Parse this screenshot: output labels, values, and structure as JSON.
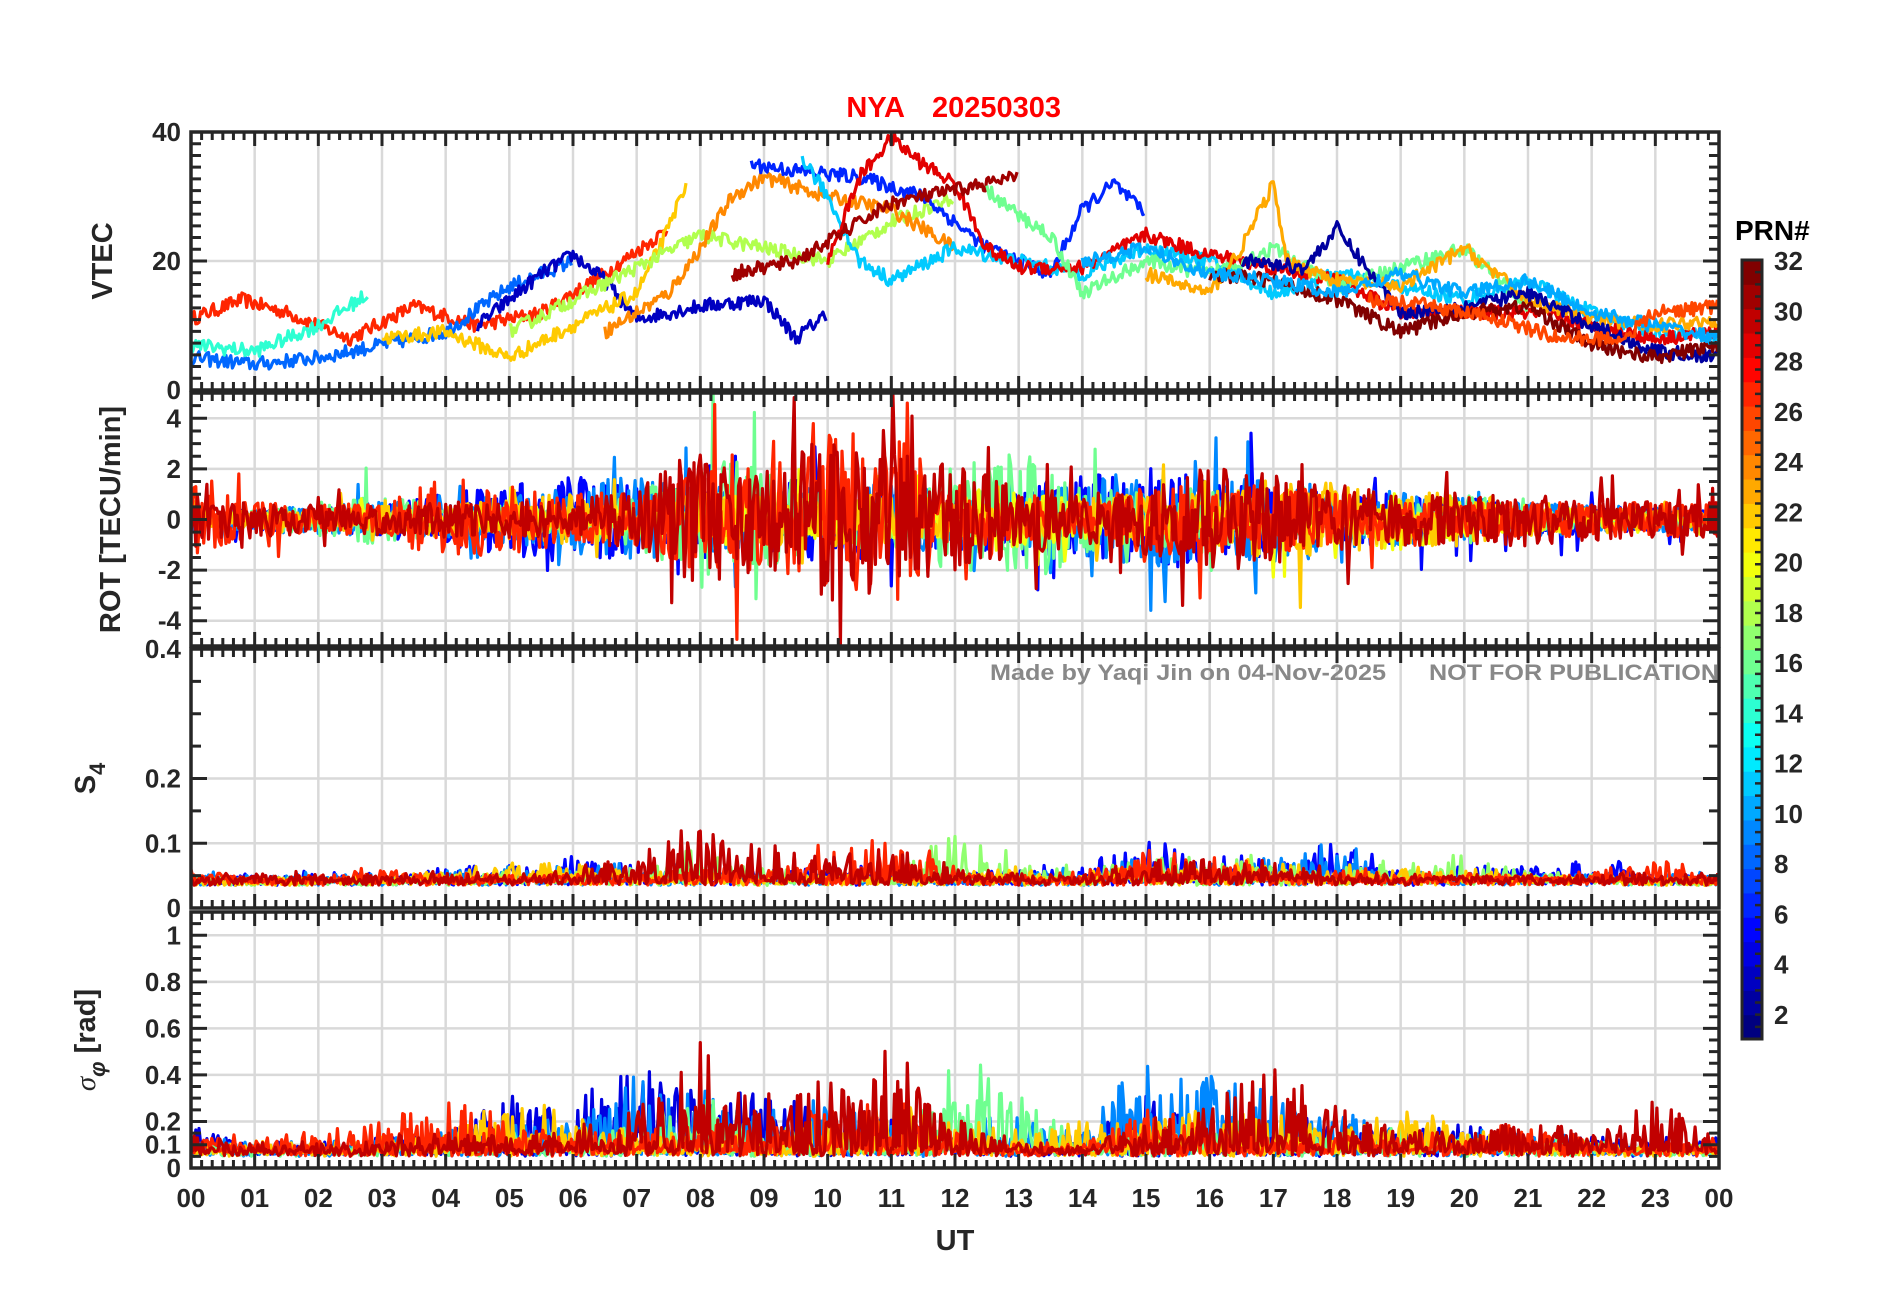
{
  "title": {
    "station": "NYA",
    "date": "20250303",
    "color": "#ff0000"
  },
  "watermark": {
    "author": "Made by Yaqi Jin on 04-Nov-2025",
    "notice": "NOT FOR PUBLICATION"
  },
  "xaxis": {
    "label": "UT",
    "range": [
      0,
      24
    ],
    "ticks": [
      "00",
      "01",
      "02",
      "03",
      "04",
      "05",
      "06",
      "07",
      "08",
      "09",
      "10",
      "11",
      "12",
      "13",
      "14",
      "15",
      "16",
      "17",
      "18",
      "19",
      "20",
      "21",
      "22",
      "23",
      "00"
    ]
  },
  "colorbar": {
    "label": "PRN#",
    "range": [
      1,
      32
    ],
    "colormap": "jet",
    "ticks": [
      "2",
      "4",
      "6",
      "8",
      "10",
      "12",
      "14",
      "16",
      "18",
      "20",
      "22",
      "24",
      "26",
      "28",
      "30",
      "32"
    ]
  },
  "chart_data": [
    {
      "type": "line",
      "name": "vtec",
      "ylabel": "VTEC",
      "ylim": [
        0,
        40
      ],
      "yticks": [
        0,
        20,
        40
      ],
      "ytick_labels": [
        "0",
        "20",
        "40"
      ],
      "series": [
        {
          "prn": 27,
          "x": [
            0,
            0.8,
            1.5,
            2.5,
            3.5,
            4.5,
            5.5,
            6.5,
            7.5
          ],
          "y": [
            11,
            14,
            12,
            8,
            13,
            10,
            12,
            18,
            25
          ]
        },
        {
          "prn": 8,
          "x": [
            0,
            1,
            2,
            3,
            4,
            5,
            6
          ],
          "y": [
            5,
            4,
            5,
            7,
            9,
            16,
            20
          ]
        },
        {
          "prn": 3,
          "x": [
            4.5,
            5.5,
            6,
            6.5,
            7,
            8,
            9,
            9.5,
            10
          ],
          "y": [
            10,
            18,
            21,
            17,
            11,
            13,
            14,
            8,
            12
          ]
        },
        {
          "prn": 14,
          "x": [
            0,
            1,
            2,
            2.8
          ],
          "y": [
            7,
            6,
            10,
            15
          ]
        },
        {
          "prn": 22,
          "x": [
            3,
            4,
            5,
            6,
            7,
            7.5,
            7.8
          ],
          "y": [
            8,
            9,
            5,
            10,
            15,
            25,
            33
          ]
        },
        {
          "prn": 18,
          "x": [
            5,
            6,
            7,
            8,
            9,
            10,
            11,
            12
          ],
          "y": [
            9,
            14,
            19,
            24,
            22,
            20,
            26,
            30
          ]
        },
        {
          "prn": 24,
          "x": [
            6.5,
            7.5,
            8,
            8.5,
            9,
            10,
            11,
            12
          ],
          "y": [
            9,
            15,
            22,
            30,
            33,
            30,
            28,
            22
          ]
        },
        {
          "prn": 6,
          "x": [
            8.8,
            9.5,
            10.5,
            11.5,
            12.5,
            13.5,
            14,
            14.5,
            15
          ],
          "y": [
            35,
            34,
            33,
            30,
            22,
            18,
            28,
            32,
            27
          ]
        },
        {
          "prn": 11,
          "x": [
            9.6,
            10,
            10.5,
            11,
            12,
            13,
            14,
            15,
            16,
            17,
            18,
            19,
            20,
            21,
            22,
            23,
            24
          ],
          "y": [
            36,
            30,
            20,
            17,
            22,
            20,
            18,
            22,
            20,
            15,
            18,
            16,
            14,
            17,
            12,
            9,
            8
          ]
        },
        {
          "prn": 29,
          "x": [
            10,
            10.5,
            11,
            11.5,
            12,
            12.5,
            13,
            14,
            15,
            16,
            17,
            18,
            19,
            20,
            21,
            22,
            23,
            24
          ],
          "y": [
            20,
            33,
            39,
            35,
            32,
            22,
            19,
            19,
            24,
            21,
            19,
            17,
            12,
            12,
            12,
            10,
            8,
            9
          ]
        },
        {
          "prn": 31,
          "x": [
            8.5,
            9.5,
            10,
            11,
            12,
            13
          ],
          "y": [
            18,
            20,
            23,
            29,
            31,
            33
          ]
        },
        {
          "prn": 16,
          "x": [
            12.5,
            13,
            13.5,
            14,
            15,
            16,
            17,
            18,
            19,
            20,
            21
          ],
          "y": [
            31,
            27,
            24,
            15,
            20,
            18,
            22,
            16,
            19,
            22,
            13
          ]
        },
        {
          "prn": 23,
          "x": [
            15,
            16,
            16.5,
            17,
            17.2,
            18,
            19,
            20,
            21,
            22,
            23,
            24
          ],
          "y": [
            18,
            15,
            22,
            32,
            20,
            17,
            16,
            22,
            14,
            11,
            10,
            11
          ]
        },
        {
          "prn": 2,
          "x": [
            16.5,
            17.5,
            18,
            19,
            20,
            21,
            22,
            23,
            24
          ],
          "y": [
            20,
            19,
            25,
            12,
            13,
            15,
            10,
            6,
            5
          ]
        },
        {
          "prn": 32,
          "x": [
            16,
            17,
            18,
            19,
            20,
            21,
            22,
            23,
            24
          ],
          "y": [
            18,
            17,
            14,
            9,
            12,
            13,
            7,
            5,
            7
          ]
        },
        {
          "prn": 10,
          "x": [
            14,
            15,
            16,
            17,
            18,
            19,
            20,
            21,
            22,
            23,
            24
          ],
          "y": [
            20,
            22,
            18,
            17,
            15,
            18,
            15,
            17,
            12,
            10,
            8
          ]
        },
        {
          "prn": 26,
          "x": [
            18.5,
            19.5,
            20.5,
            21.5,
            22.5,
            23,
            24
          ],
          "y": [
            14,
            13,
            11,
            8,
            8,
            12,
            13
          ]
        }
      ]
    },
    {
      "type": "line",
      "name": "rot",
      "ylabel": "ROT [TECU/min]",
      "ylim": [
        -5,
        5
      ],
      "yticks": [
        -4,
        -2,
        0,
        2,
        4
      ],
      "ytick_labels": [
        "-4",
        "-2",
        "0",
        "2",
        "4"
      ],
      "series_note": "hourly amplitude envelope (TECU/min), hours 0-24",
      "series": [
        {
          "prn": 5,
          "amp": [
            0.5,
            0.6,
            0.7,
            1,
            1.5,
            2,
            2.5,
            2,
            1.5,
            2,
            2.5,
            2,
            1.5,
            2,
            2.5,
            3,
            2.5,
            2,
            1.5,
            1.5,
            1.2,
            1,
            0.8,
            0.6,
            0.6
          ]
        },
        {
          "prn": 9,
          "amp": [
            0.6,
            0.7,
            0.8,
            1,
            1,
            1.5,
            2,
            2.5,
            2,
            1.5,
            2,
            2,
            1.5,
            1.5,
            2,
            3,
            2,
            2.5,
            2,
            1.5,
            1.2,
            1,
            0.8,
            0.7,
            0.6
          ]
        },
        {
          "prn": 16,
          "amp": [
            0.4,
            0.5,
            1,
            1.5,
            0.8,
            0.8,
            1,
            1.5,
            4,
            3,
            1.5,
            1.5,
            3,
            4,
            2,
            1.5,
            2,
            1,
            1,
            1,
            1.5,
            0.6,
            0.5,
            0.4,
            0.4
          ]
        },
        {
          "prn": 20,
          "amp": [
            0.4,
            0.4,
            0.5,
            0.6,
            0.6,
            0.8,
            0.8,
            1,
            1.5,
            1.5,
            1.5,
            1.2,
            1.5,
            2,
            1.2,
            1,
            1,
            1.5,
            1.2,
            2,
            1,
            0.8,
            0.6,
            0.5,
            0.4
          ]
        },
        {
          "prn": 22,
          "amp": [
            0.5,
            0.5,
            0.6,
            0.8,
            1,
            1.2,
            1.5,
            0.8,
            1,
            1.5,
            1.5,
            1.5,
            1,
            1,
            1.2,
            1.5,
            1.5,
            2.5,
            2,
            1.5,
            1.5,
            1,
            0.8,
            0.6,
            0.5
          ]
        },
        {
          "prn": 27,
          "amp": [
            2,
            1,
            0.8,
            1,
            2.5,
            2,
            1.5,
            1.5,
            3,
            3,
            5,
            5,
            2,
            1,
            1,
            2,
            2,
            2,
            1.5,
            1,
            1,
            1,
            1,
            1,
            1
          ]
        },
        {
          "prn": 30,
          "amp": [
            1.5,
            1,
            0.8,
            0.8,
            1,
            1,
            1,
            2,
            4,
            3,
            5,
            4,
            3,
            2,
            1.5,
            2,
            3,
            2.5,
            2,
            1.5,
            1.5,
            1.5,
            1.2,
            1,
            1
          ]
        }
      ]
    },
    {
      "type": "line",
      "name": "s4",
      "ylabel": "S",
      "ylabel_sub": "4",
      "ylim": [
        0,
        0.4
      ],
      "yticks": [
        0,
        0.1,
        0.2,
        0.4
      ],
      "ytick_labels": [
        "0",
        "0.1",
        "0.2",
        "0.4"
      ],
      "series_note": "hourly peak S4, hours 0-24",
      "series": [
        {
          "prn": 5,
          "peak": [
            0.05,
            0.05,
            0.05,
            0.05,
            0.06,
            0.06,
            0.08,
            0.06,
            0.05,
            0.06,
            0.07,
            0.06,
            0.05,
            0.06,
            0.07,
            0.1,
            0.08,
            0.07,
            0.1,
            0.06,
            0.06,
            0.06,
            0.08,
            0.05,
            0.05
          ]
        },
        {
          "prn": 9,
          "peak": [
            0.05,
            0.05,
            0.05,
            0.05,
            0.06,
            0.06,
            0.06,
            0.07,
            0.06,
            0.05,
            0.05,
            0.05,
            0.05,
            0.05,
            0.06,
            0.08,
            0.07,
            0.08,
            0.1,
            0.06,
            0.05,
            0.05,
            0.05,
            0.05,
            0.05
          ]
        },
        {
          "prn": 17,
          "peak": [
            0.04,
            0.04,
            0.04,
            0.04,
            0.05,
            0.05,
            0.05,
            0.06,
            0.1,
            0.06,
            0.05,
            0.05,
            0.12,
            0.08,
            0.06,
            0.08,
            0.1,
            0.07,
            0.06,
            0.07,
            0.08,
            0.06,
            0.05,
            0.04,
            0.04
          ]
        },
        {
          "prn": 22,
          "peak": [
            0.04,
            0.04,
            0.04,
            0.05,
            0.05,
            0.07,
            0.07,
            0.05,
            0.05,
            0.05,
            0.05,
            0.05,
            0.05,
            0.06,
            0.05,
            0.07,
            0.07,
            0.08,
            0.06,
            0.06,
            0.06,
            0.05,
            0.05,
            0.04,
            0.04
          ]
        },
        {
          "prn": 27,
          "peak": [
            0.06,
            0.05,
            0.05,
            0.06,
            0.05,
            0.05,
            0.05,
            0.05,
            0.06,
            0.06,
            0.11,
            0.12,
            0.06,
            0.05,
            0.05,
            0.09,
            0.08,
            0.06,
            0.06,
            0.05,
            0.05,
            0.05,
            0.06,
            0.08,
            0.05
          ]
        },
        {
          "prn": 30,
          "peak": [
            0.05,
            0.05,
            0.05,
            0.05,
            0.05,
            0.05,
            0.06,
            0.08,
            0.13,
            0.1,
            0.08,
            0.1,
            0.06,
            0.05,
            0.05,
            0.07,
            0.08,
            0.07,
            0.06,
            0.05,
            0.05,
            0.05,
            0.05,
            0.05,
            0.05
          ]
        }
      ]
    },
    {
      "type": "line",
      "name": "sigma-phi",
      "ylabel": "σ",
      "ylabel_sub": "φ",
      "ylabel_unit": "[rad]",
      "ylim": [
        0,
        1.1
      ],
      "yticks": [
        0,
        0.1,
        0.2,
        0.4,
        0.6,
        0.8,
        1
      ],
      "ytick_labels": [
        "0",
        "0.1",
        "0.2",
        "0.4",
        "0.6",
        "0.8",
        "1"
      ],
      "series_note": "hourly peak sigma-phi (rad), hours 0-24",
      "series": [
        {
          "prn": 4,
          "peak": [
            0.2,
            0.1,
            0.1,
            0.12,
            0.15,
            0.3,
            0.3,
            0.45,
            0.35,
            0.35,
            0.2,
            0.2,
            0.15,
            0.1,
            0.15,
            0.3,
            0.2,
            0.2,
            0.2,
            0.15,
            0.2,
            0.15,
            0.15,
            0.12,
            0.12
          ]
        },
        {
          "prn": 9,
          "peak": [
            0.12,
            0.1,
            0.1,
            0.12,
            0.15,
            0.2,
            0.2,
            0.4,
            0.35,
            0.25,
            0.3,
            0.2,
            0.2,
            0.25,
            0.15,
            0.5,
            0.4,
            0.3,
            0.25,
            0.15,
            0.15,
            0.15,
            0.12,
            0.1,
            0.1
          ]
        },
        {
          "prn": 16,
          "peak": [
            0.1,
            0.08,
            0.08,
            0.1,
            0.1,
            0.15,
            0.15,
            0.2,
            0.35,
            0.2,
            0.15,
            0.15,
            0.55,
            0.3,
            0.1,
            0.15,
            0.2,
            0.15,
            0.15,
            0.2,
            0.15,
            0.12,
            0.1,
            0.08,
            0.08
          ]
        },
        {
          "prn": 22,
          "peak": [
            0.1,
            0.1,
            0.1,
            0.12,
            0.15,
            0.3,
            0.25,
            0.15,
            0.15,
            0.15,
            0.2,
            0.3,
            0.2,
            0.15,
            0.2,
            0.2,
            0.25,
            0.25,
            0.15,
            0.3,
            0.15,
            0.12,
            0.1,
            0.1,
            0.1
          ]
        },
        {
          "prn": 27,
          "peak": [
            0.15,
            0.12,
            0.15,
            0.2,
            0.3,
            0.2,
            0.15,
            0.15,
            0.2,
            0.15,
            0.3,
            0.3,
            0.15,
            0.1,
            0.1,
            0.25,
            0.2,
            0.15,
            0.12,
            0.12,
            0.15,
            0.2,
            0.12,
            0.12,
            0.12
          ]
        },
        {
          "prn": 30,
          "peak": [
            0.15,
            0.1,
            0.1,
            0.12,
            0.15,
            0.15,
            0.15,
            0.3,
            0.55,
            0.3,
            0.4,
            0.55,
            0.2,
            0.1,
            0.1,
            0.2,
            0.3,
            0.45,
            0.25,
            0.15,
            0.15,
            0.2,
            0.15,
            0.3,
            0.15
          ]
        }
      ]
    }
  ]
}
